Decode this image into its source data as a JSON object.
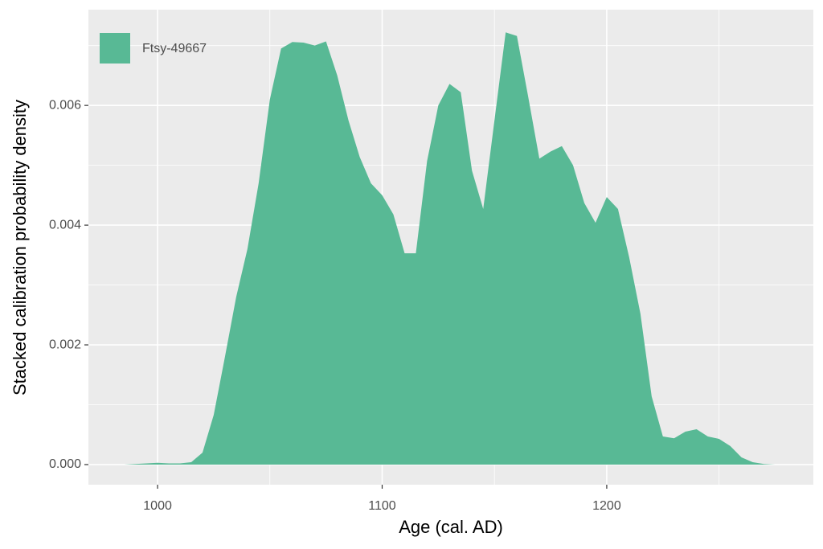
{
  "chart_data": {
    "type": "area",
    "x_label": "Age (cal. AD)",
    "y_label": "Stacked calibration probability density",
    "x": [
      985,
      990,
      995,
      1000,
      1005,
      1010,
      1015,
      1020,
      1025,
      1030,
      1035,
      1040,
      1045,
      1050,
      1055,
      1060,
      1065,
      1070,
      1075,
      1080,
      1085,
      1090,
      1095,
      1100,
      1105,
      1110,
      1115,
      1120,
      1125,
      1130,
      1135,
      1140,
      1145,
      1150,
      1155,
      1160,
      1165,
      1170,
      1175,
      1180,
      1185,
      1190,
      1195,
      1200,
      1205,
      1210,
      1215,
      1220,
      1225,
      1230,
      1235,
      1240,
      1245,
      1250,
      1255,
      1260,
      1265,
      1270,
      1275
    ],
    "series": [
      {
        "name": "Ftsy-49667",
        "color": "#58b995",
        "values": [
          0,
          1e-05,
          2e-05,
          3e-05,
          2e-05,
          2e-05,
          4e-05,
          0.0002,
          0.00083,
          0.0018,
          0.0028,
          0.0036,
          0.0047,
          0.0061,
          0.00695,
          0.00706,
          0.00705,
          0.007,
          0.00707,
          0.0065,
          0.00575,
          0.00514,
          0.0047,
          0.0045,
          0.00418,
          0.00353,
          0.00353,
          0.00507,
          0.006,
          0.00636,
          0.00622,
          0.00491,
          0.00427,
          0.00575,
          0.00722,
          0.00716,
          0.00615,
          0.00511,
          0.00523,
          0.00532,
          0.005,
          0.00437,
          0.00404,
          0.00447,
          0.00427,
          0.00346,
          0.00252,
          0.00114,
          0.00047,
          0.00044,
          0.00055,
          0.00059,
          0.00047,
          0.00043,
          0.00031,
          0.00012,
          4e-05,
          1e-05,
          0
        ]
      }
    ],
    "xlim": [
      969.2,
      1292
    ],
    "ylim": [
      -0.000336,
      0.0076
    ],
    "xticks": [
      1000,
      1100,
      1200
    ],
    "yticks": [
      {
        "value": 0,
        "label": "0.000"
      },
      {
        "value": 0.002,
        "label": "0.002"
      },
      {
        "value": 0.004,
        "label": "0.004"
      },
      {
        "value": 0.006,
        "label": "0.006"
      }
    ],
    "x_minor_ticks": [
      1050,
      1150,
      1250
    ],
    "y_minor_ticks": [
      0.001,
      0.003,
      0.005,
      0.007
    ],
    "grid": true,
    "legend_position": "top-left"
  }
}
